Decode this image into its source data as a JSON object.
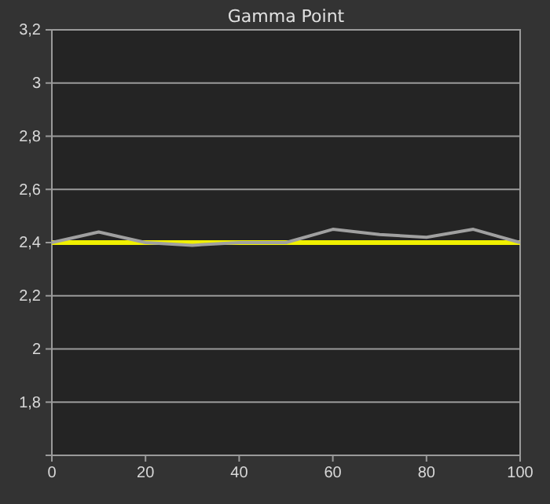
{
  "chart_data": {
    "type": "line",
    "title": "Gamma Point",
    "x": [
      0,
      10,
      20,
      30,
      40,
      50,
      60,
      70,
      80,
      90,
      100
    ],
    "series": [
      {
        "color": "#a0a0a0",
        "values": [
          2.4,
          2.44,
          2.4,
          2.39,
          2.4,
          2.4,
          2.45,
          2.43,
          2.42,
          2.45,
          2.4
        ]
      }
    ],
    "ref_lines": [
      {
        "axis": "y",
        "value": 2.4,
        "color": "#f0f000"
      }
    ],
    "xlim": [
      0,
      100
    ],
    "xticks": [
      0,
      20,
      40,
      60,
      80,
      100
    ],
    "ylim": [
      1.6,
      3.2
    ],
    "yticks": [
      {
        "value": 1.8,
        "label": "1,8"
      },
      {
        "value": 2,
        "label": "2"
      },
      {
        "value": 2.2,
        "label": "2,2"
      },
      {
        "value": 2.4,
        "label": "2,4"
      },
      {
        "value": 2.6,
        "label": "2,6"
      },
      {
        "value": 2.8,
        "label": "2,8"
      },
      {
        "value": 3,
        "label": "3"
      },
      {
        "value": 3.2,
        "label": "3,2"
      }
    ],
    "grid": "y",
    "marker": "none",
    "line_style": "solid"
  }
}
